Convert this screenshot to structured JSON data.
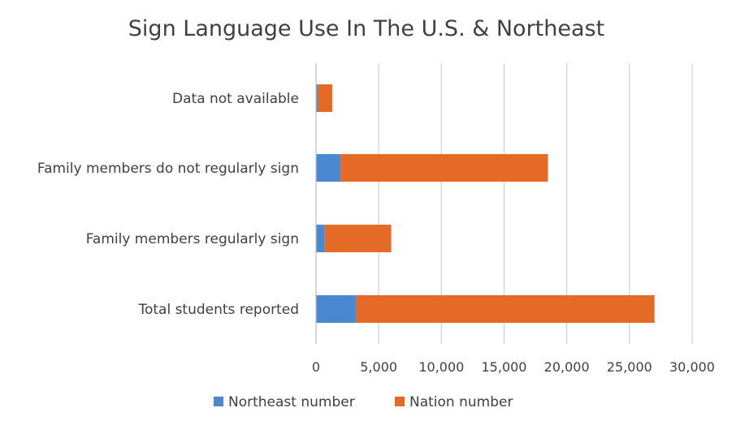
{
  "chart_data": {
    "type": "bar",
    "orientation": "horizontal",
    "stacked": true,
    "title": "Sign Language Use In The U.S. & Northeast",
    "categories": [
      "Total students reported",
      "Family members regularly sign",
      "Family members do not regularly sign",
      "Data not available"
    ],
    "series": [
      {
        "name": "Northeast number",
        "color": "#4A89D1",
        "values": [
          3200,
          700,
          1950,
          150
        ]
      },
      {
        "name": "Nation number",
        "color": "#E46A25",
        "values": [
          23800,
          5300,
          16550,
          1150
        ]
      }
    ],
    "xlim": [
      0,
      30000
    ],
    "xticks": [
      0,
      5000,
      10000,
      15000,
      20000,
      25000,
      30000
    ],
    "xtick_labels": [
      "0",
      "5,000",
      "10,000",
      "15,000",
      "20,000",
      "25,000",
      "30,000"
    ],
    "grid": true,
    "legend_position": "bottom"
  }
}
